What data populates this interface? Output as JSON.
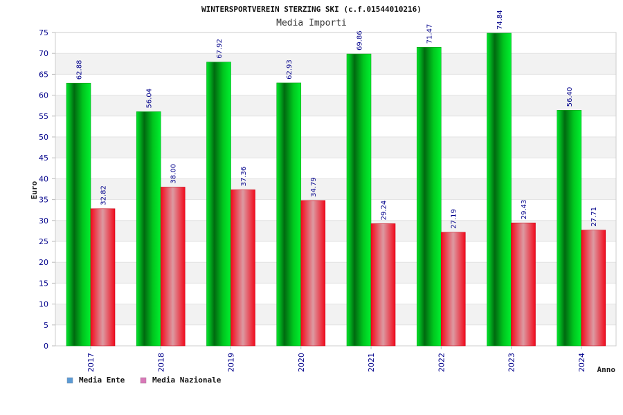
{
  "chart_data": {
    "type": "bar",
    "title": "WINTERSPORTVEREIN STERZING SKI (c.f.01544010216)",
    "subtitle": "Media Importi",
    "xlabel": "Anno",
    "ylabel": "Euro",
    "ylim": [
      0,
      75
    ],
    "ytick_step": 5,
    "grid": true,
    "legend_position": "bottom-left",
    "categories": [
      "2017",
      "2018",
      "2019",
      "2020",
      "2021",
      "2022",
      "2023",
      "2024"
    ],
    "series": [
      {
        "name": "Media Ente",
        "values": [
          62.88,
          56.04,
          67.92,
          62.93,
          69.86,
          71.47,
          74.84,
          56.4
        ],
        "labels": [
          "62.88",
          "56.04",
          "67.92",
          "62.93",
          "69.86",
          "71.47",
          "74.84",
          "56.40"
        ],
        "color": "#00cc22",
        "legend_color": "#5b9bd5"
      },
      {
        "name": "Media Nazionale",
        "values": [
          32.82,
          38.0,
          37.36,
          34.79,
          29.24,
          27.19,
          29.43,
          27.71
        ],
        "labels": [
          "32.82",
          "38.00",
          "37.36",
          "34.79",
          "29.24",
          "27.19",
          "29.43",
          "27.71"
        ],
        "color": "#ee1122",
        "legend_color": "#d878b8"
      }
    ]
  }
}
